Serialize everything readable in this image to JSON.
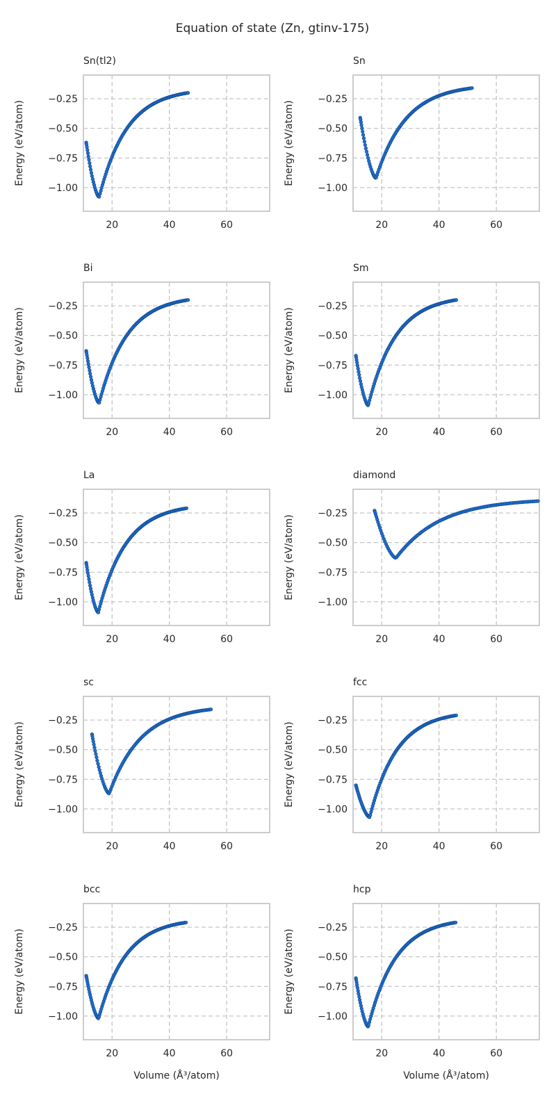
{
  "figure": {
    "title": "Equation of state (Zn, gtinv-175)",
    "xlabel": "Volume (Å³/atom)",
    "ylabel": "Energy (eV/atom)"
  },
  "colors": {
    "marker_fill": "#1f6fd1",
    "marker_edge": "#0b3d7a",
    "grid": "#bfbfbf",
    "frame": "#cccccc"
  },
  "chart_data": [
    {
      "type": "scatter",
      "title": "Sn(tl2)",
      "xlabel": "",
      "ylabel": "Energy (eV/atom)",
      "xlim": [
        10,
        75
      ],
      "ylim": [
        -1.2,
        -0.05
      ],
      "xticks": [
        20,
        40,
        60
      ],
      "yticks": [
        -1.0,
        -0.75,
        -0.5,
        -0.25
      ],
      "grid": true,
      "curve": {
        "v_start": 11.0,
        "v_min": 15.5,
        "v_end": 46.5,
        "e_start": -0.62,
        "e_min": -1.08,
        "e_end": -0.2,
        "n": 110
      }
    },
    {
      "type": "scatter",
      "title": "Sn",
      "xlabel": "",
      "ylabel": "Energy (eV/atom)",
      "xlim": [
        10,
        75
      ],
      "ylim": [
        -1.2,
        -0.05
      ],
      "xticks": [
        20,
        40,
        60
      ],
      "yticks": [
        -1.0,
        -0.75,
        -0.5,
        -0.25
      ],
      "grid": true,
      "curve": {
        "v_start": 12.5,
        "v_min": 18.0,
        "v_end": 51.5,
        "e_start": -0.41,
        "e_min": -0.92,
        "e_end": -0.16,
        "n": 110
      }
    },
    {
      "type": "scatter",
      "title": "Bi",
      "xlabel": "",
      "ylabel": "Energy (eV/atom)",
      "xlim": [
        10,
        75
      ],
      "ylim": [
        -1.2,
        -0.05
      ],
      "xticks": [
        20,
        40,
        60
      ],
      "yticks": [
        -1.0,
        -0.75,
        -0.5,
        -0.25
      ],
      "grid": true,
      "curve": {
        "v_start": 11.0,
        "v_min": 15.5,
        "v_end": 46.5,
        "e_start": -0.63,
        "e_min": -1.07,
        "e_end": -0.2,
        "n": 110
      }
    },
    {
      "type": "scatter",
      "title": "Sm",
      "xlabel": "",
      "ylabel": "Energy (eV/atom)",
      "xlim": [
        10,
        75
      ],
      "ylim": [
        -1.2,
        -0.05
      ],
      "xticks": [
        20,
        40,
        60
      ],
      "yticks": [
        -1.0,
        -0.75,
        -0.5,
        -0.25
      ],
      "grid": true,
      "curve": {
        "v_start": 11.0,
        "v_min": 15.3,
        "v_end": 46.0,
        "e_start": -0.67,
        "e_min": -1.09,
        "e_end": -0.2,
        "n": 110
      }
    },
    {
      "type": "scatter",
      "title": "La",
      "xlabel": "",
      "ylabel": "Energy (eV/atom)",
      "xlim": [
        10,
        75
      ],
      "ylim": [
        -1.2,
        -0.05
      ],
      "xticks": [
        20,
        40,
        60
      ],
      "yticks": [
        -1.0,
        -0.75,
        -0.5,
        -0.25
      ],
      "grid": true,
      "curve": {
        "v_start": 11.0,
        "v_min": 15.2,
        "v_end": 46.0,
        "e_start": -0.67,
        "e_min": -1.09,
        "e_end": -0.21,
        "n": 110
      }
    },
    {
      "type": "scatter",
      "title": "diamond",
      "xlabel": "",
      "ylabel": "Energy (eV/atom)",
      "xlim": [
        10,
        75
      ],
      "ylim": [
        -1.2,
        -0.05
      ],
      "xticks": [
        20,
        40,
        60
      ],
      "yticks": [
        -1.0,
        -0.75,
        -0.5,
        -0.25
      ],
      "grid": true,
      "curve": {
        "v_start": 17.5,
        "v_min": 25.0,
        "v_end": 74.5,
        "e_start": -0.23,
        "e_min": -0.63,
        "e_end": -0.15,
        "n": 110
      }
    },
    {
      "type": "scatter",
      "title": "sc",
      "xlabel": "",
      "ylabel": "Energy (eV/atom)",
      "xlim": [
        10,
        75
      ],
      "ylim": [
        -1.2,
        -0.05
      ],
      "xticks": [
        20,
        40,
        60
      ],
      "yticks": [
        -1.0,
        -0.75,
        -0.5,
        -0.25
      ],
      "grid": true,
      "curve": {
        "v_start": 13.0,
        "v_min": 19.0,
        "v_end": 54.5,
        "e_start": -0.37,
        "e_min": -0.87,
        "e_end": -0.16,
        "n": 110
      }
    },
    {
      "type": "scatter",
      "title": "fcc",
      "xlabel": "",
      "ylabel": "Energy (eV/atom)",
      "xlim": [
        10,
        75
      ],
      "ylim": [
        -1.2,
        -0.05
      ],
      "xticks": [
        20,
        40,
        60
      ],
      "yticks": [
        -1.0,
        -0.75,
        -0.5,
        -0.25
      ],
      "grid": true,
      "curve": {
        "v_start": 11.0,
        "v_min": 15.8,
        "v_end": 46.0,
        "e_start": -0.8,
        "e_min": -1.07,
        "e_end": -0.21,
        "n": 110
      }
    },
    {
      "type": "scatter",
      "title": "bcc",
      "xlabel": "Volume (Å³/atom)",
      "ylabel": "Energy (eV/atom)",
      "xlim": [
        10,
        75
      ],
      "ylim": [
        -1.2,
        -0.05
      ],
      "xticks": [
        20,
        40,
        60
      ],
      "yticks": [
        -1.0,
        -0.75,
        -0.5,
        -0.25
      ],
      "grid": true,
      "curve": {
        "v_start": 11.0,
        "v_min": 15.3,
        "v_end": 45.8,
        "e_start": -0.66,
        "e_min": -1.02,
        "e_end": -0.21,
        "n": 110
      }
    },
    {
      "type": "scatter",
      "title": "hcp",
      "xlabel": "Volume (Å³/atom)",
      "ylabel": "Energy (eV/atom)",
      "xlim": [
        10,
        75
      ],
      "ylim": [
        -1.2,
        -0.05
      ],
      "xticks": [
        20,
        40,
        60
      ],
      "yticks": [
        -1.0,
        -0.75,
        -0.5,
        -0.25
      ],
      "grid": true,
      "curve": {
        "v_start": 11.0,
        "v_min": 15.3,
        "v_end": 45.8,
        "e_start": -0.68,
        "e_min": -1.09,
        "e_end": -0.21,
        "n": 110
      }
    }
  ]
}
